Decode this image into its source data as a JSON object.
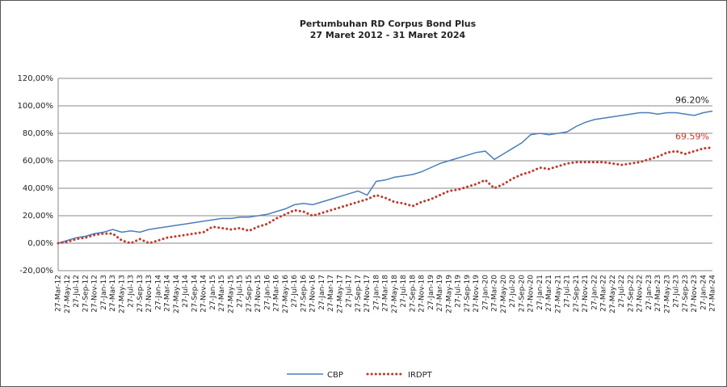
{
  "chart_data": {
    "type": "line",
    "title": "Pertumbuhan RD Corpus Bond Plus",
    "subtitle": "27 Maret 2012 - 31 Maret 2024",
    "categories": [
      "27-Mar-12",
      "27-May-12",
      "27-Jul-12",
      "27-Sep-12",
      "27-Nov-12",
      "27-Jan-13",
      "27-Mar-13",
      "27-May-13",
      "27-Jul-13",
      "27-Sep-13",
      "27-Nov-13",
      "27-Jan-14",
      "27-Mar-14",
      "27-May-14",
      "27-Jul-14",
      "27-Sep-14",
      "27-Nov-14",
      "27-Jan-15",
      "27-Mar-15",
      "27-May-15",
      "27-Jul-15",
      "27-Sep-15",
      "27-Nov-15",
      "27-Jan-16",
      "27-Mar-16",
      "27-May-16",
      "27-Jul-16",
      "27-Sep-16",
      "27-Nov-16",
      "27-Jan-17",
      "27-Mar-17",
      "27-May-17",
      "27-Jul-17",
      "27-Sep-17",
      "27-Nov-17",
      "27-Jan-18",
      "27-Mar-18",
      "27-May-18",
      "27-Jul-18",
      "27-Sep-18",
      "27-Nov-18",
      "27-Jan-19",
      "27-Mar-19",
      "27-May-19",
      "27-Jul-19",
      "27-Sep-19",
      "27-Nov-19",
      "27-Jan-20",
      "27-Mar-20",
      "27-May-20",
      "27-Jul-20",
      "27-Sep-20",
      "27-Nov-20",
      "27-Jan-21",
      "27-Mar-21",
      "27-May-21",
      "27-Jul-21",
      "27-Sep-21",
      "27-Nov-21",
      "27-Jan-22",
      "27-Mar-22",
      "27-May-22",
      "27-Jul-22",
      "27-Sep-22",
      "27-Nov-22",
      "27-Jan-23",
      "27-Mar-23",
      "27-May-23",
      "27-Jul-23",
      "27-Sep-23",
      "27-Nov-23",
      "27-Jan-24",
      "27-Mar-24"
    ],
    "series": [
      {
        "name": "CBP",
        "color": "#4a7ebb",
        "style": "solid",
        "values": [
          0,
          2,
          4,
          5,
          7,
          8,
          10,
          8,
          9,
          8,
          10,
          11,
          12,
          13,
          14,
          15,
          16,
          17,
          18,
          18,
          19,
          19,
          20,
          21,
          23,
          25,
          28,
          29,
          28,
          30,
          32,
          34,
          36,
          38,
          35,
          45,
          46,
          48,
          49,
          50,
          52,
          55,
          58,
          60,
          62,
          64,
          66,
          67,
          61,
          65,
          69,
          73,
          79,
          80,
          79,
          80,
          81,
          85,
          88,
          90,
          91,
          92,
          93,
          94,
          95,
          95,
          94,
          95,
          95,
          94,
          93,
          95,
          96.2
        ],
        "value_labels": [
          null,
          null,
          null,
          null,
          null,
          null,
          null,
          null,
          null,
          null,
          null,
          null,
          null,
          null,
          null,
          null,
          null,
          null,
          null,
          null,
          null,
          null,
          null,
          null,
          null,
          null,
          null,
          null,
          null,
          null,
          null,
          null,
          null,
          null,
          null,
          null,
          null,
          null,
          null,
          null,
          null,
          null,
          null,
          null,
          null,
          null,
          null,
          null,
          null,
          null,
          null,
          null,
          null,
          null,
          null,
          null,
          null,
          null,
          null,
          null,
          null,
          null,
          null,
          null,
          null,
          null,
          null,
          null,
          null,
          null,
          null,
          null,
          "96.20%"
        ]
      },
      {
        "name": "IRDPT",
        "color": "#c0392b",
        "style": "dotted",
        "values": [
          0,
          1,
          3,
          4,
          6,
          7,
          7,
          2,
          0,
          3,
          0,
          2,
          4,
          5,
          6,
          7,
          8,
          12,
          11,
          10,
          11,
          9,
          12,
          14,
          18,
          21,
          24,
          23,
          20,
          22,
          24,
          26,
          28,
          30,
          32,
          35,
          33,
          30,
          29,
          27,
          30,
          32,
          35,
          38,
          39,
          41,
          43,
          46,
          40,
          43,
          47,
          50,
          52,
          55,
          54,
          56,
          58,
          59,
          59,
          59,
          59,
          58,
          57,
          58,
          59,
          61,
          63,
          66,
          67,
          65,
          67,
          69,
          69.59
        ],
        "value_labels": [
          null,
          null,
          null,
          null,
          null,
          null,
          null,
          null,
          null,
          null,
          null,
          null,
          null,
          null,
          null,
          null,
          null,
          null,
          null,
          null,
          null,
          null,
          null,
          null,
          null,
          null,
          null,
          null,
          null,
          null,
          null,
          null,
          null,
          null,
          null,
          null,
          null,
          null,
          null,
          null,
          null,
          null,
          null,
          null,
          null,
          null,
          null,
          null,
          null,
          null,
          null,
          null,
          null,
          null,
          null,
          null,
          null,
          null,
          null,
          null,
          null,
          null,
          null,
          null,
          null,
          null,
          null,
          null,
          null,
          null,
          null,
          null,
          "69.59%"
        ]
      }
    ],
    "ylim": [
      -20,
      120
    ],
    "yticks": [
      {
        "value": -20,
        "label": "-20,00%"
      },
      {
        "value": 0,
        "label": "0,00%"
      },
      {
        "value": 20,
        "label": "20,00%"
      },
      {
        "value": 40,
        "label": "40,00%"
      },
      {
        "value": 60,
        "label": "60,00%"
      },
      {
        "value": 80,
        "label": "80,00%"
      },
      {
        "value": 100,
        "label": "100,00%"
      },
      {
        "value": 120,
        "label": "120,00%"
      }
    ],
    "grid": true,
    "legend": "bottom"
  }
}
